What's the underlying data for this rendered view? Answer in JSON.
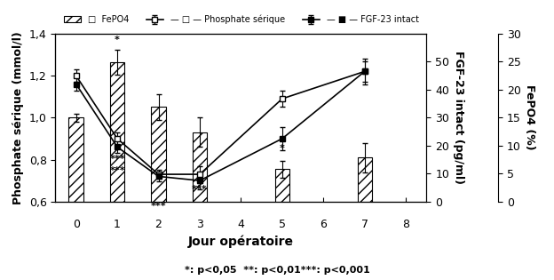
{
  "chart_data": {
    "type": "bar",
    "x_label": "Jour opératoire",
    "y_label": "Phosphate sérique (mmol/l)",
    "y2_label": "FGF-23 intact (pg/ml)",
    "y3_label": "FePO4 (%)",
    "note": "*: p<0,05  **: p<0,01***: p<0,001",
    "x": [
      0,
      1,
      2,
      3,
      5,
      7
    ],
    "xlim": [
      -0.5,
      8.5
    ],
    "xticks": [
      0,
      1,
      2,
      3,
      4,
      5,
      6,
      7,
      8
    ],
    "ylim": [
      0.6,
      1.4
    ],
    "yticks": [
      {
        "value": 0.6,
        "label": "0,6"
      },
      {
        "value": 0.8,
        "label": "0,8"
      },
      {
        "value": 1.0,
        "label": "1,0"
      },
      {
        "value": 1.2,
        "label": "1,2"
      },
      {
        "value": 1.4,
        "label": "1,4"
      }
    ],
    "y2lim": [
      0,
      60
    ],
    "y2ticks": [
      0,
      10,
      20,
      30,
      40,
      50
    ],
    "y3lim": [
      0,
      30
    ],
    "y3ticks": [
      0,
      5,
      10,
      15,
      20,
      25,
      30
    ],
    "legend": "upper right",
    "series": [
      {
        "name": "□  FePO4",
        "type": "bar",
        "color": "white",
        "values": [
          1.0,
          1.265,
          1.05,
          0.93,
          0.755,
          0.81
        ],
        "errors": [
          0.02,
          0.06,
          0.06,
          0.07,
          0.04,
          0.07
        ],
        "stars": [
          {
            "x": 1.0,
            "y": 1.35,
            "text": "*"
          }
        ]
      },
      {
        "name": "— □ — Phosphate sérique",
        "type": "line",
        "color": "black",
        "marker": "open_square",
        "values": [
          1.2,
          0.9,
          0.73,
          0.73,
          1.09,
          1.22
        ],
        "errors": [
          0.03,
          0.03,
          0.02,
          0.04,
          0.04,
          0.05
        ],
        "stars": [
          {
            "x": 1,
            "y": 0.77,
            "text": "***"
          },
          {
            "x": 2,
            "y": 0.6,
            "text": "***"
          },
          {
            "x": 3,
            "y": 0.68,
            "text": "***"
          }
        ]
      },
      {
        "name": "— ■ — FGF-23 intact",
        "type": "line",
        "color": "black",
        "marker": "square",
        "values": [
          1.16,
          0.86,
          0.72,
          0.7,
          0.9,
          1.22
        ],
        "errors": [
          0.03,
          0.03,
          0.025,
          0.04,
          0.055,
          0.06
        ],
        "stars": [
          {
            "x": 1,
            "y": 0.825,
            "text": "***"
          },
          {
            "x": 5,
            "y": 0.875,
            "text": "*"
          }
        ]
      }
    ]
  }
}
